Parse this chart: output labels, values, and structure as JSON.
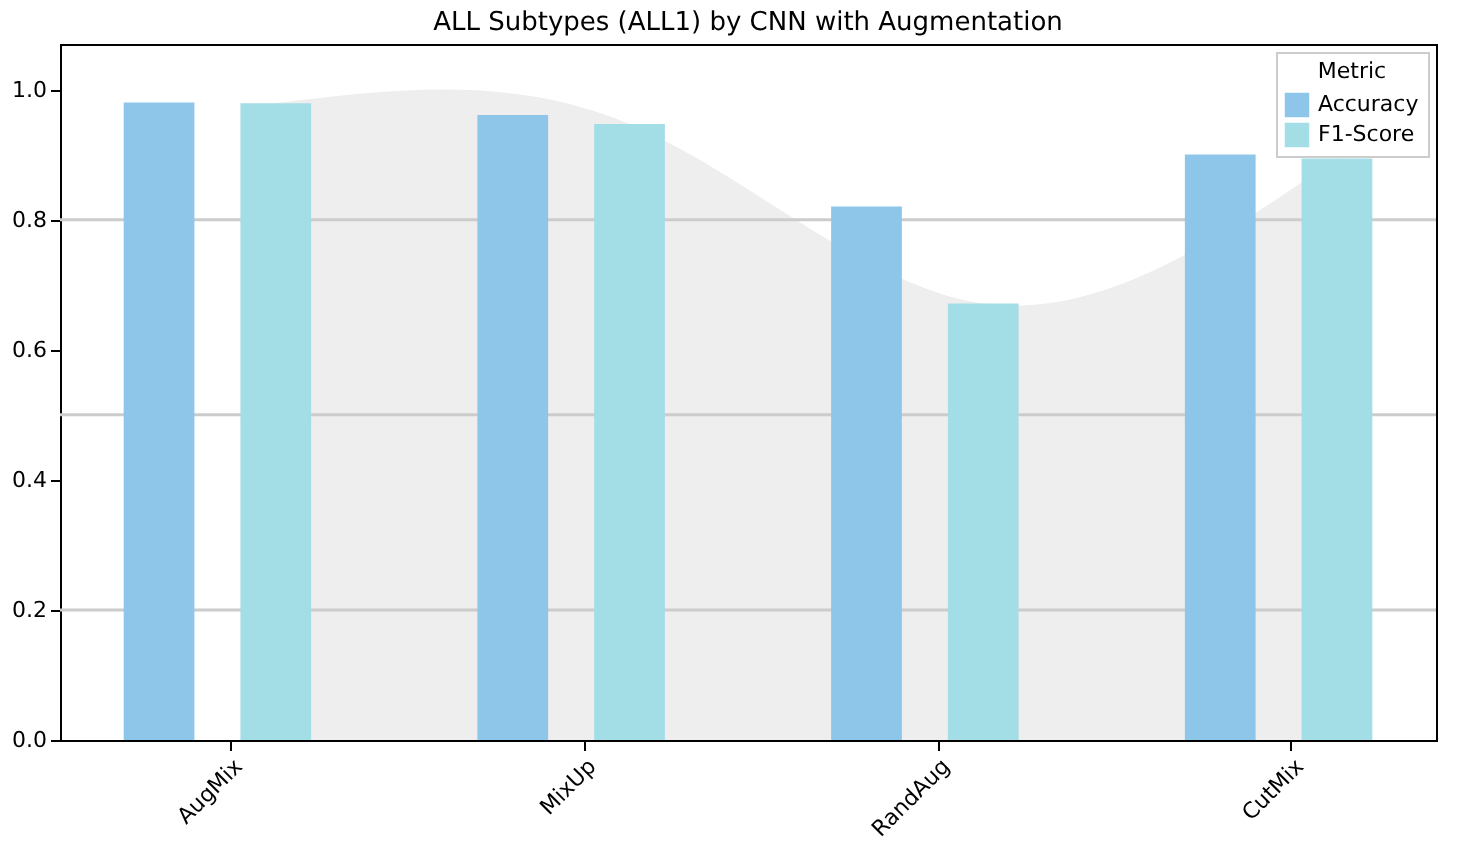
{
  "chart_data": {
    "type": "bar",
    "title": "ALL Subtypes (ALL1) by CNN with Augmentation",
    "categories": [
      "AugMix",
      "MixUp",
      "RandAug",
      "CutMix"
    ],
    "series": [
      {
        "name": "Accuracy",
        "color": "#8ec6ea",
        "values": [
          0.98,
          0.961,
          0.82,
          0.9
        ]
      },
      {
        "name": "F1-Score",
        "color": "#a3dde6",
        "values": [
          0.979,
          0.947,
          0.671,
          0.894
        ]
      },
      {
        "type": "area",
        "color": "#eeeeee",
        "values": [
          0.979,
          0.947,
          0.671,
          0.894
        ]
      }
    ],
    "ylim": [
      0,
      1.07
    ],
    "yticks": [
      {
        "value": 0,
        "label": "0.0"
      },
      0.2,
      0.4,
      0.6,
      0.8,
      {
        "value": 1,
        "label": "1.0"
      }
    ],
    "ref_lines": [
      {
        "axis": "y",
        "value": 0.2,
        "color": "#cccccc"
      },
      {
        "axis": "y",
        "value": 0.5,
        "color": "#cccccc"
      },
      {
        "axis": "y",
        "value": 0.8,
        "color": "#cccccc"
      }
    ],
    "legend_title": "Metric",
    "legend": "top right",
    "grid": false
  }
}
